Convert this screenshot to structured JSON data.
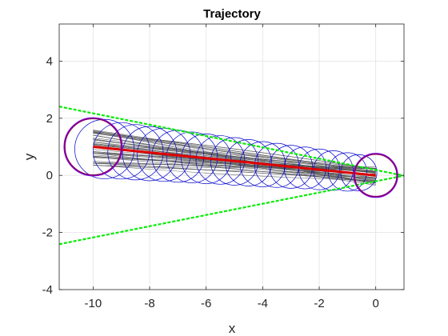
{
  "chart_data": {
    "type": "line",
    "title": "Trajectory",
    "xlabel": "x",
    "ylabel": "y",
    "xlim": [
      -11.2,
      1
    ],
    "ylim": [
      -4,
      5.3
    ],
    "xticks": [
      -10,
      -8,
      -6,
      -4,
      -2,
      0
    ],
    "yticks": [
      -4,
      -2,
      0,
      2,
      4
    ],
    "xtick_labels": [
      "-10",
      "-8",
      "-6",
      "-4",
      "-2",
      "0"
    ],
    "ytick_labels": [
      "-4",
      "-2",
      "0",
      "2",
      "4"
    ],
    "grid": true,
    "legend": "none",
    "series": [
      {
        "kind": "cone-boundary",
        "style": "dashed",
        "color": "#00ee00",
        "lines": [
          {
            "x": [
              -11.2,
              1
            ],
            "y": [
              2.41,
              -0.01
            ]
          },
          {
            "x": [
              -11.2,
              1
            ],
            "y": [
              -2.41,
              -0.01
            ]
          }
        ]
      },
      {
        "kind": "uncertainty-circles",
        "color": "#0000cc",
        "centers": {
          "x": [
            -9.6,
            -9.0,
            -8.5,
            -8.0,
            -7.5,
            -7.0,
            -6.5,
            -6.0,
            -5.5,
            -5.0,
            -4.5,
            -4.0,
            -3.5,
            -3.0,
            -2.5,
            -2.0,
            -1.5,
            -1.0,
            -0.6
          ],
          "y": [
            0.92,
            0.86,
            0.81,
            0.76,
            0.72,
            0.67,
            0.63,
            0.58,
            0.54,
            0.49,
            0.44,
            0.39,
            0.35,
            0.3,
            0.26,
            0.21,
            0.17,
            0.12,
            0.09
          ]
        },
        "radii": [
          1.05,
          1.0,
          0.98,
          0.96,
          0.94,
          0.92,
          0.9,
          0.88,
          0.86,
          0.84,
          0.82,
          0.8,
          0.78,
          0.76,
          0.74,
          0.72,
          0.7,
          0.68,
          0.64
        ]
      },
      {
        "kind": "sample-trajectories",
        "color": "#555555",
        "count": 50,
        "x_range": [
          -10,
          0
        ],
        "y_start_range": [
          0.35,
          1.65
        ],
        "y_end_range": [
          -0.35,
          0.3
        ]
      },
      {
        "kind": "mean-trajectory",
        "color": "#dd0000",
        "x": [
          -10,
          -8,
          -6,
          -4,
          -2,
          0
        ],
        "y": [
          1.0,
          0.8,
          0.6,
          0.4,
          0.2,
          0.0
        ]
      },
      {
        "kind": "endpoint-circles",
        "color": "#880066",
        "outer_color": "#7700ff",
        "circles": [
          {
            "cx": -10,
            "cy": 1.0,
            "r": 1.0
          },
          {
            "cx": 0,
            "cy": 0.0,
            "r": 0.75
          }
        ]
      }
    ]
  }
}
